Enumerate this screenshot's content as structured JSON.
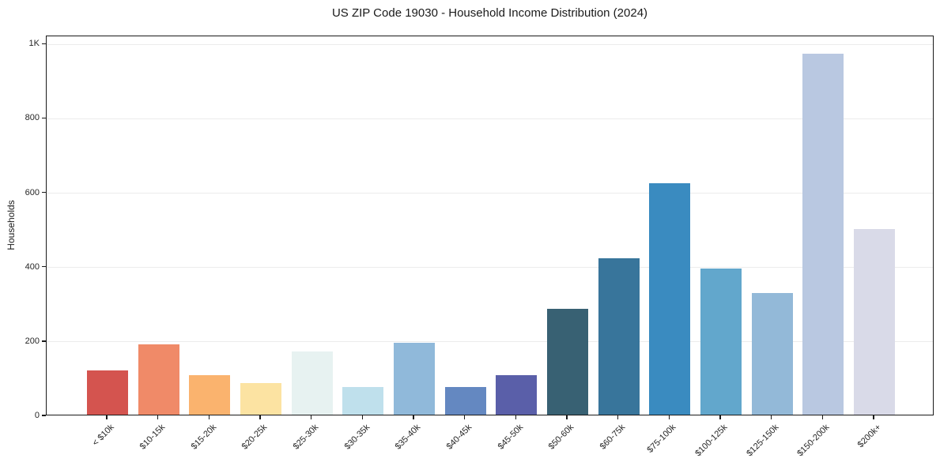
{
  "title": "US ZIP Code 19030 - Household Income Distribution (2024)",
  "chart_data": {
    "type": "bar",
    "title": "US ZIP Code 19030 - Household Income Distribution (2024)",
    "xlabel": "",
    "ylabel": "Households",
    "categories": [
      "< $10k",
      "$10-15k",
      "$15-20k",
      "$20-25k",
      "$25-30k",
      "$30-35k",
      "$35-40k",
      "$40-45k",
      "$45-50k",
      "$50-60k",
      "$60-75k",
      "$75-100k",
      "$100-125k",
      "$125-150k",
      "$150-200k",
      "$200k+"
    ],
    "values": [
      119,
      190,
      107,
      85,
      170,
      74,
      193,
      74,
      106,
      284,
      420,
      622,
      393,
      328,
      972,
      500
    ],
    "bar_colors": [
      "#d4544f",
      "#f08a68",
      "#fab36e",
      "#fce3a2",
      "#e7f2f1",
      "#bfe0ec",
      "#90b9da",
      "#6488c1",
      "#5a5fa9",
      "#386173",
      "#38759b",
      "#3a8bc0",
      "#62a7cc",
      "#93b9d8",
      "#b9c8e1",
      "#d9dae8"
    ],
    "ylim": [
      0,
      1022
    ],
    "yticks": [
      {
        "value": 0,
        "label": "0"
      },
      {
        "value": 200,
        "label": "200"
      },
      {
        "value": 400,
        "label": "400"
      },
      {
        "value": 600,
        "label": "600"
      },
      {
        "value": 800,
        "label": "800"
      },
      {
        "value": 1000,
        "label": "1K"
      }
    ],
    "grid": "horizontal",
    "legend": "none",
    "gridline_color": "#ececec",
    "spine_color": "#1a1a1a",
    "background": "#ffffff",
    "xtick_rotation_deg": 45
  }
}
